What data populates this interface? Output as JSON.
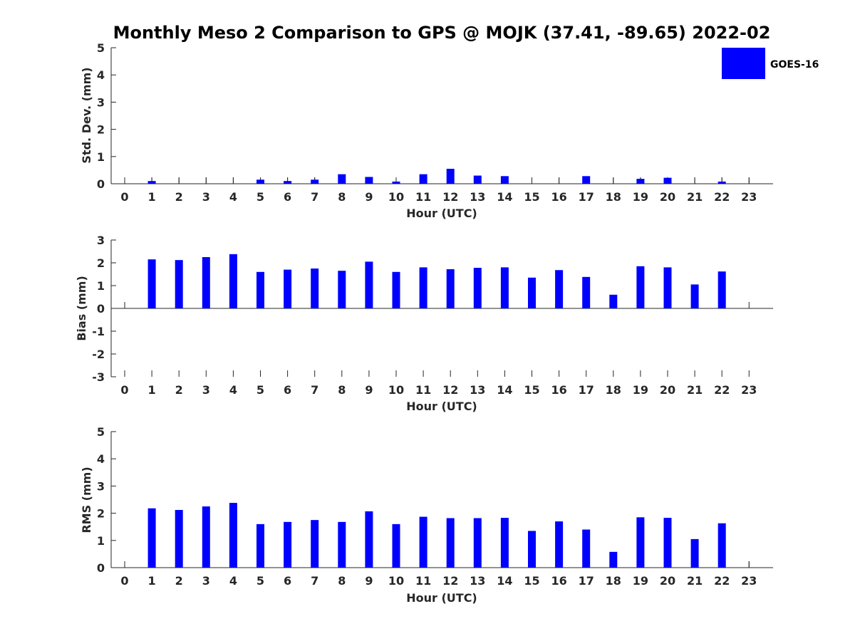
{
  "title": "Monthly Meso 2 Comparison to GPS @ MOJK (37.41, -89.65) 2022-02",
  "legend": {
    "label": "GOES-16",
    "color": "#0000ff",
    "position": "top-right"
  },
  "chart_data": [
    {
      "type": "bar",
      "name": "std-dev",
      "xlabel": "Hour (UTC)",
      "ylabel": "Std. Dev. (mm)",
      "ylim": [
        0,
        5
      ],
      "yticks": [
        "0",
        "1",
        "2",
        "3",
        "4",
        "5"
      ],
      "categories": [
        "0",
        "1",
        "2",
        "3",
        "4",
        "5",
        "6",
        "7",
        "8",
        "9",
        "10",
        "11",
        "12",
        "13",
        "14",
        "15",
        "16",
        "17",
        "18",
        "19",
        "20",
        "21",
        "22",
        "23"
      ],
      "series": [
        {
          "name": "GOES-16",
          "color": "#0000ff",
          "values": [
            null,
            0.1,
            null,
            null,
            null,
            0.15,
            0.1,
            0.15,
            0.35,
            0.25,
            0.08,
            0.35,
            0.55,
            0.3,
            0.28,
            null,
            null,
            0.28,
            null,
            0.18,
            0.22,
            null,
            0.08,
            null
          ]
        }
      ]
    },
    {
      "type": "bar",
      "name": "bias",
      "xlabel": "Hour (UTC)",
      "ylabel": "Bias (mm)",
      "ylim": [
        -3,
        3
      ],
      "yticks": [
        "-3",
        "-2",
        "-1",
        "0",
        "1",
        "2",
        "3"
      ],
      "categories": [
        "0",
        "1",
        "2",
        "3",
        "4",
        "5",
        "6",
        "7",
        "8",
        "9",
        "10",
        "11",
        "12",
        "13",
        "14",
        "15",
        "16",
        "17",
        "18",
        "19",
        "20",
        "21",
        "22",
        "23"
      ],
      "series": [
        {
          "name": "GOES-16",
          "color": "#0000ff",
          "values": [
            null,
            2.15,
            2.12,
            2.25,
            2.38,
            1.6,
            1.7,
            1.75,
            1.65,
            2.05,
            1.6,
            1.8,
            1.72,
            1.78,
            1.8,
            1.35,
            1.68,
            1.38,
            0.6,
            1.85,
            1.8,
            1.05,
            1.62,
            null
          ]
        }
      ]
    },
    {
      "type": "bar",
      "name": "rms",
      "xlabel": "Hour (UTC)",
      "ylabel": "RMS (mm)",
      "ylim": [
        0,
        5
      ],
      "yticks": [
        "0",
        "1",
        "2",
        "3",
        "4",
        "5"
      ],
      "categories": [
        "0",
        "1",
        "2",
        "3",
        "4",
        "5",
        "6",
        "7",
        "8",
        "9",
        "10",
        "11",
        "12",
        "13",
        "14",
        "15",
        "16",
        "17",
        "18",
        "19",
        "20",
        "21",
        "22",
        "23"
      ],
      "series": [
        {
          "name": "GOES-16",
          "color": "#0000ff",
          "values": [
            null,
            2.18,
            2.12,
            2.25,
            2.38,
            1.6,
            1.68,
            1.75,
            1.68,
            2.07,
            1.6,
            1.87,
            1.82,
            1.82,
            1.83,
            1.35,
            1.7,
            1.4,
            0.58,
            1.85,
            1.83,
            1.05,
            1.63,
            null
          ]
        }
      ]
    }
  ]
}
